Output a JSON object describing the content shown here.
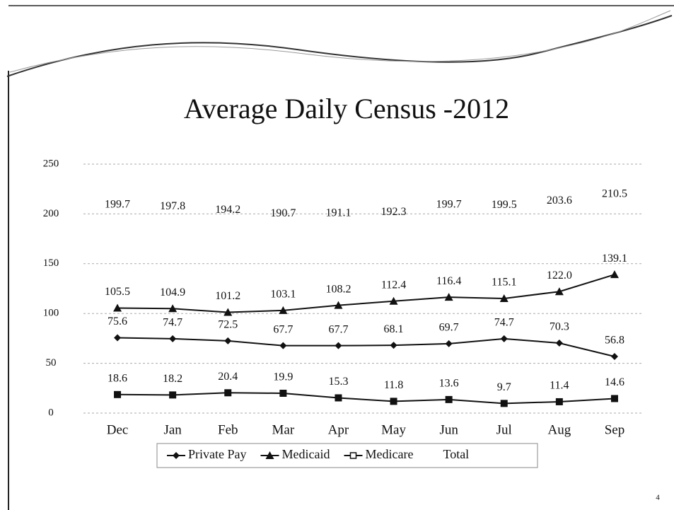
{
  "chart_data": {
    "type": "line",
    "title": "Average Daily Census -2012",
    "page_number": "4",
    "categories": [
      "Dec",
      "Jan",
      "Feb",
      "Mar",
      "Apr",
      "May",
      "Jun",
      "Jul",
      "Aug",
      "Sep"
    ],
    "series": [
      {
        "name": "Private Pay",
        "color": "#111111",
        "marker": "diamond",
        "show_line": true,
        "values": [
          75.6,
          74.7,
          72.5,
          67.7,
          67.7,
          68.1,
          69.7,
          74.7,
          70.3,
          56.8
        ]
      },
      {
        "name": "Medicaid",
        "color": "#111111",
        "marker": "triangle",
        "show_line": true,
        "values": [
          105.5,
          104.9,
          101.2,
          103.1,
          108.2,
          112.4,
          116.4,
          115.1,
          122.0,
          139.1
        ],
        "value_labels": [
          "105.5",
          "104.9",
          "101.2",
          "103.1",
          "108.2",
          "112.4",
          "116.4",
          "115.1",
          "122.0",
          "139.1"
        ]
      },
      {
        "name": "Medicare",
        "color": "#111111",
        "marker": "square",
        "show_line": true,
        "values": [
          18.6,
          18.2,
          20.4,
          19.9,
          15.3,
          11.8,
          13.6,
          9.7,
          11.4,
          14.6
        ]
      },
      {
        "name": "Total",
        "color": "#111111",
        "marker": "none",
        "show_line": false,
        "values": [
          199.7,
          197.8,
          194.2,
          190.7,
          191.1,
          192.3,
          199.7,
          199.5,
          203.6,
          210.5
        ]
      }
    ],
    "ylim": [
      0,
      250
    ],
    "yticks": [
      0,
      50,
      100,
      150,
      200,
      250
    ],
    "grid": true,
    "legend": "bottom"
  }
}
